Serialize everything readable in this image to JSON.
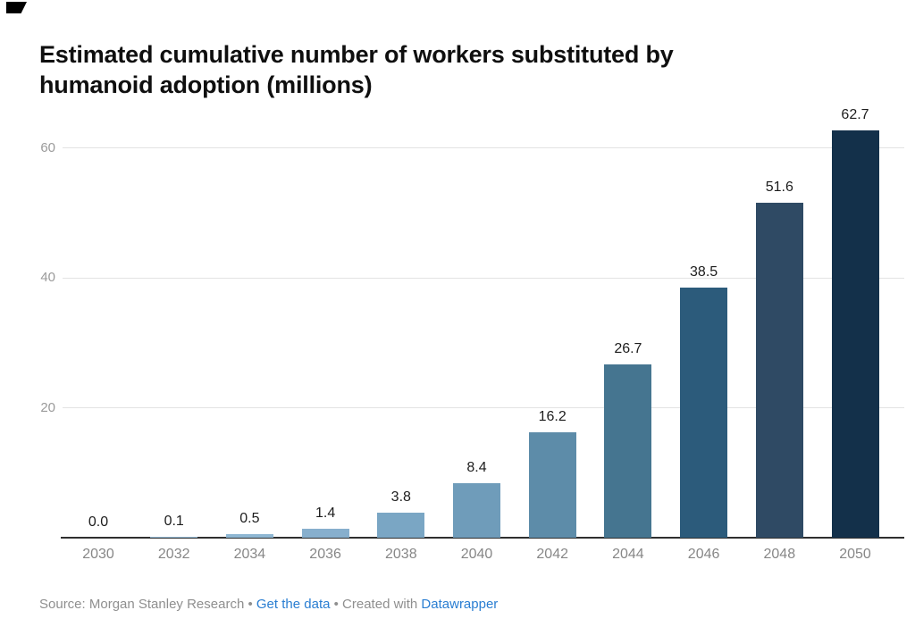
{
  "title": "Estimated cumulative number of workers substituted by humanoid adoption (millions)",
  "chart_data": {
    "type": "bar",
    "title": "Estimated cumulative number of workers substituted by humanoid adoption (millions)",
    "categories": [
      "2030",
      "2032",
      "2034",
      "2036",
      "2038",
      "2040",
      "2042",
      "2044",
      "2046",
      "2048",
      "2050"
    ],
    "values": [
      0.0,
      0.1,
      0.5,
      1.4,
      3.8,
      8.4,
      16.2,
      26.7,
      38.5,
      51.6,
      62.7
    ],
    "value_labels": [
      "0.0",
      "0.1",
      "0.5",
      "1.4",
      "3.8",
      "8.4",
      "16.2",
      "26.7",
      "38.5",
      "51.6",
      "62.7"
    ],
    "bar_colors": [
      "#9dc2db",
      "#96bcd7",
      "#8fb7d3",
      "#87afcd",
      "#7aa6c4",
      "#6f9cba",
      "#5d8ca9",
      "#457590",
      "#2c5b7b",
      "#2f4a64",
      "#13304a"
    ],
    "y_ticks": [
      20,
      40,
      60
    ],
    "ylim": [
      0,
      66
    ],
    "xlabel": "",
    "ylabel": "",
    "grid": true,
    "legend": false
  },
  "footer": {
    "source_text": "Source: Morgan Stanley Research",
    "separator": " • ",
    "get_data_label": "Get the data",
    "created_with": "Created with ",
    "tool_name": "Datawrapper"
  },
  "colors": {
    "grid": "#e3e3e3",
    "baseline": "#2f2f2f",
    "axis_text": "#9a9a9a",
    "x_axis_text": "#878787",
    "value_text": "#1d1d1d",
    "footer_text": "#8f8f8f",
    "link": "#2a7ed2",
    "title_text": "#0f0f0f",
    "background": "#ffffff"
  }
}
